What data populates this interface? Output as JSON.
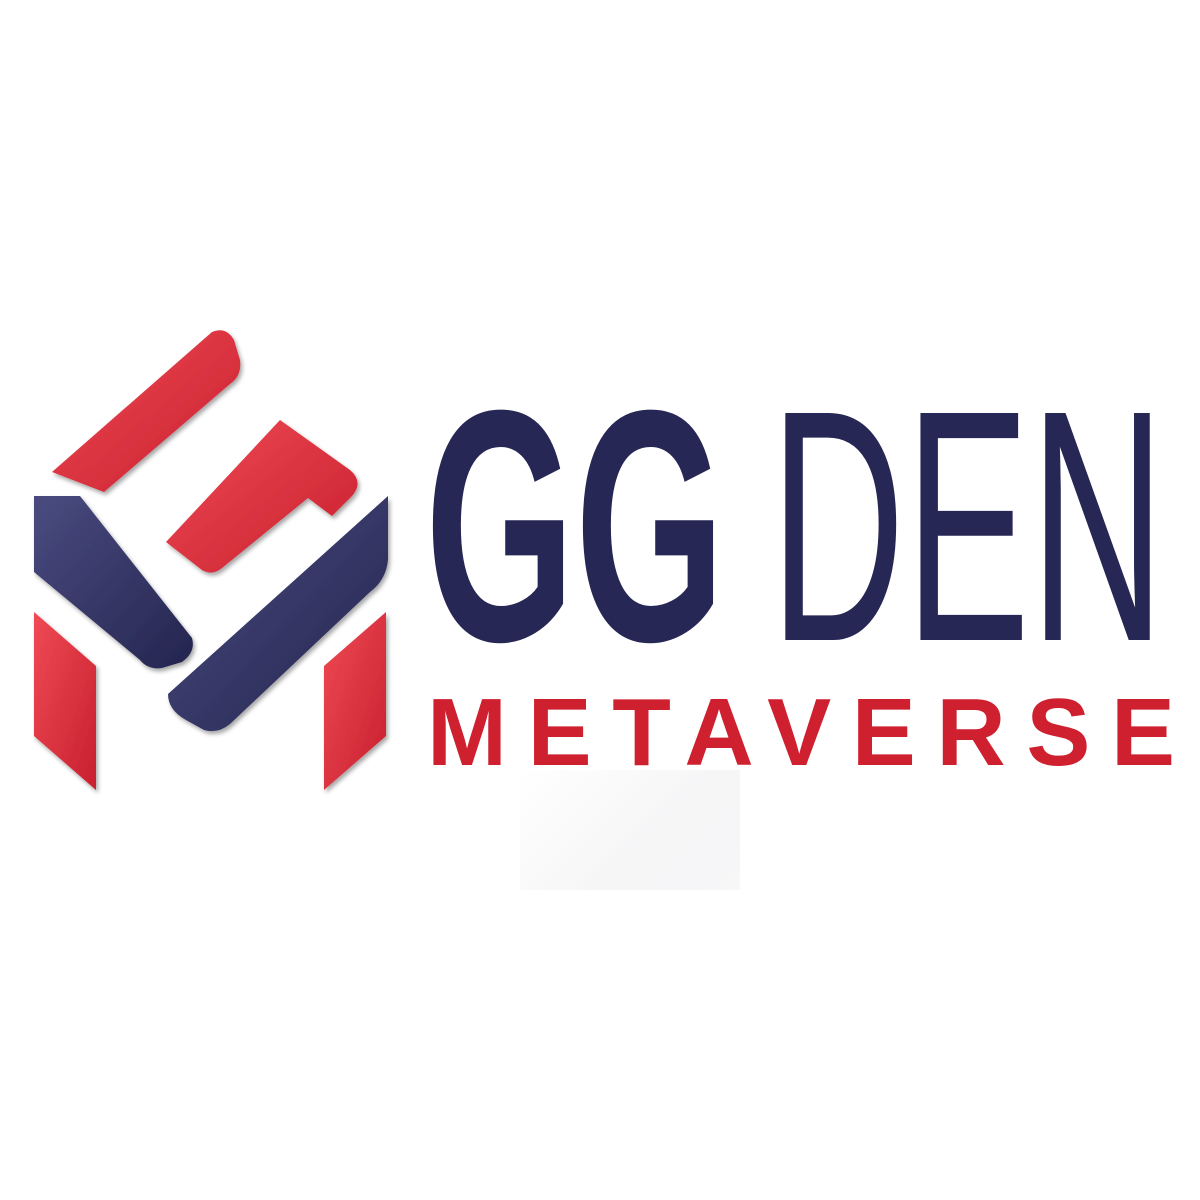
{
  "logo": {
    "brand_primary": "GG",
    "brand_secondary": "DEN",
    "tagline": "METAVERSE"
  },
  "colors": {
    "navy": "#262754",
    "navy_light": "#3e3f72",
    "red": "#cf2030",
    "red_light": "#e33b47",
    "background": "#ffffff"
  }
}
